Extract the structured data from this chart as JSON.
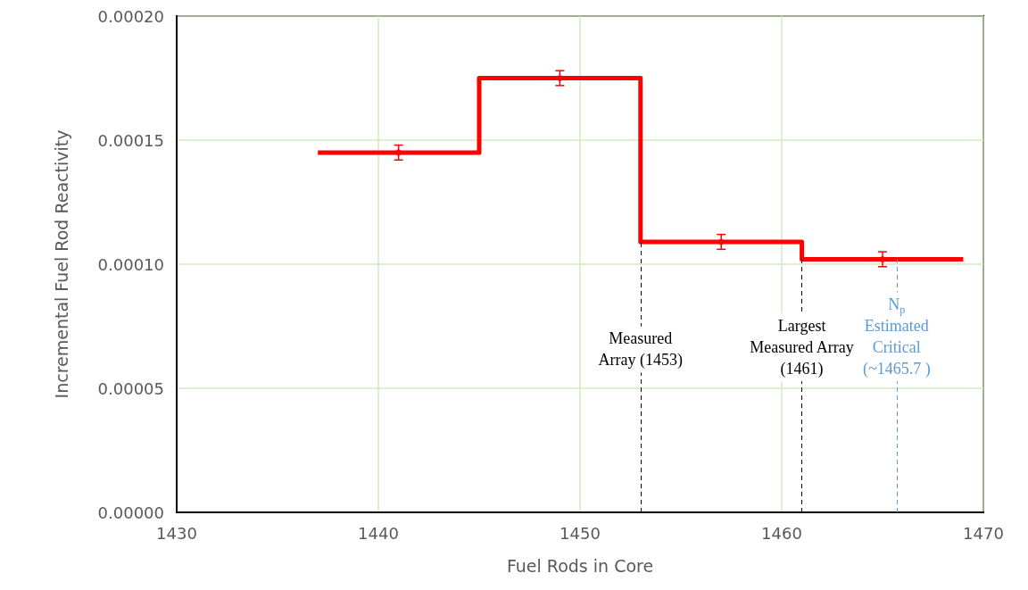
{
  "chart_data": {
    "type": "step",
    "xlabel": "Fuel Rods in Core",
    "ylabel": "Incremental Fuel Rod Reactivity",
    "series": [
      {
        "color": "#ff0000",
        "x": [
          1437,
          1445,
          1453,
          1461,
          1469
        ],
        "values": [
          0.000145,
          0.000175,
          0.000109,
          0.000102,
          0.000102
        ],
        "line_style": "solid",
        "marker": "none"
      },
      {
        "type": "scatter",
        "color": "#ff0000",
        "x": [
          1441,
          1449,
          1457,
          1465
        ],
        "values": [
          0.000145,
          0.000175,
          0.000109,
          0.000102
        ],
        "errors": [
          3e-06,
          3e-06,
          3e-06,
          3e-06
        ],
        "marker": "circle"
      }
    ],
    "xlim": [
      1430,
      1470
    ],
    "xticks": [
      1430,
      1440,
      1450,
      1460,
      1470
    ],
    "ylim": [
      0,
      0.0002
    ],
    "yticks": [
      {
        "value": 0,
        "label": "0.00000"
      },
      {
        "value": 5e-05,
        "label": "0.00005"
      },
      {
        "value": 0.0001,
        "label": "0.00010"
      },
      {
        "value": 0.00015,
        "label": "0.00015"
      },
      {
        "value": 0.0002,
        "label": "0.00020"
      }
    ],
    "grid": true,
    "ref_lines": [
      {
        "axis": "x",
        "value": 1453,
        "label": "Measured\nArray (1453)",
        "color": "#000000",
        "line_style": "dashed"
      },
      {
        "axis": "x",
        "value": 1461,
        "label": "Largest\nMeasured Array\n(1461)",
        "color": "#000000",
        "line_style": "dashed"
      },
      {
        "axis": "x",
        "value": 1465.7,
        "label": "N$_{p}$\nEstimated\nCritical\n(~1465.7 )",
        "color": "#5b9bd5",
        "line_style": "dashed"
      }
    ]
  }
}
